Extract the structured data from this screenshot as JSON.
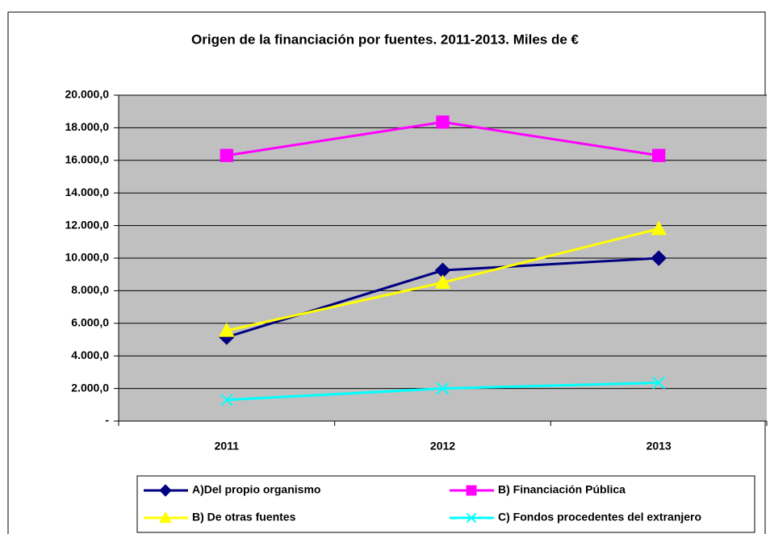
{
  "chart_data": {
    "type": "line",
    "title": "Origen de la financiación por fuentes. 2011-2013. Miles de €",
    "categories": [
      "2011",
      "2012",
      "2013"
    ],
    "series": [
      {
        "name": "A)Del propio organismo",
        "color": "#000080",
        "marker": "diamond",
        "values": [
          5150,
          9250,
          10000
        ]
      },
      {
        "name": "B) Financiación Pública",
        "color": "#ff00ff",
        "marker": "square",
        "values": [
          16300,
          18350,
          16300
        ]
      },
      {
        "name": "B) De otras fuentes",
        "color": "#ffff00",
        "marker": "triangle",
        "values": [
          5550,
          8500,
          11800
        ]
      },
      {
        "name": "C) Fondos procedentes del extranjero",
        "color": "#00ffff",
        "marker": "x",
        "values": [
          1300,
          2000,
          2350
        ]
      }
    ],
    "ylim": [
      0,
      20000
    ],
    "yticks": [
      {
        "value": 0,
        "label": "-"
      },
      {
        "value": 2000,
        "label": "2.000,0"
      },
      {
        "value": 4000,
        "label": "4.000,0"
      },
      {
        "value": 6000,
        "label": "6.000,0"
      },
      {
        "value": 8000,
        "label": "8.000,0"
      },
      {
        "value": 10000,
        "label": "10.000,0"
      },
      {
        "value": 12000,
        "label": "12.000,0"
      },
      {
        "value": 14000,
        "label": "14.000,0"
      },
      {
        "value": 16000,
        "label": "16.000,0"
      },
      {
        "value": 18000,
        "label": "18.000,0"
      },
      {
        "value": 20000,
        "label": "20.000,0"
      }
    ],
    "grid": true,
    "legend": "bottom"
  }
}
